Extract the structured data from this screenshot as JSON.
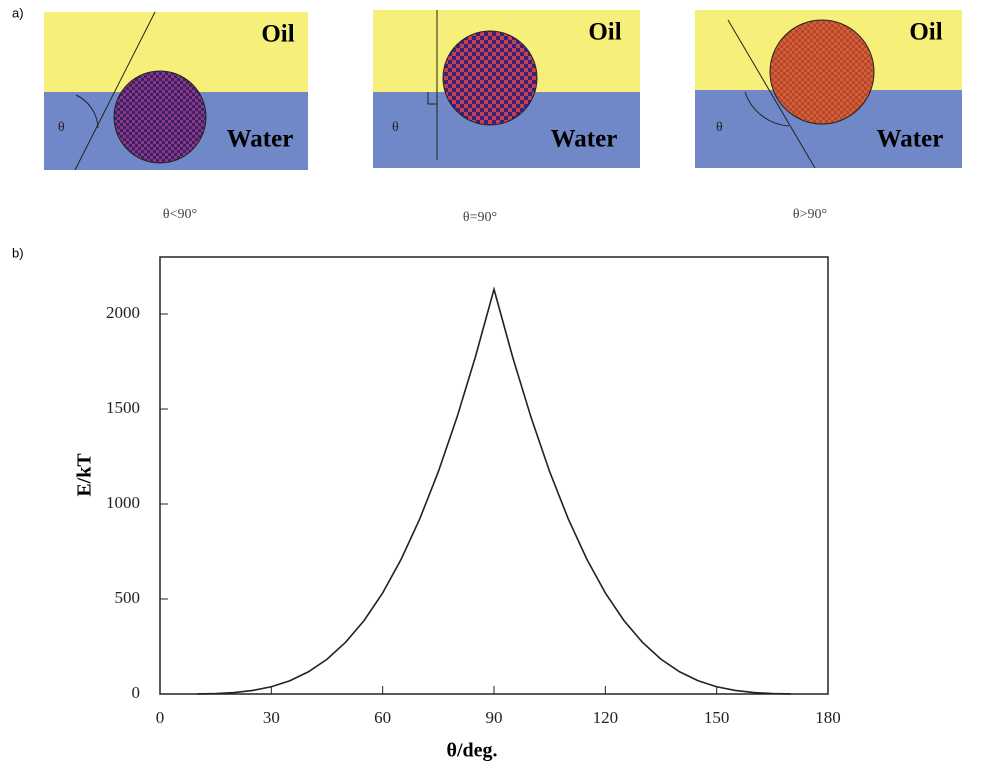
{
  "panel_a": {
    "label": "a)",
    "diagrams": [
      {
        "oil": "Oil",
        "water": "Water",
        "theta": "θ",
        "caption": "θ<90°"
      },
      {
        "oil": "Oil",
        "water": "Water",
        "theta": "θ",
        "caption": "θ=90°"
      },
      {
        "oil": "Oil",
        "water": "Water",
        "theta": "θ",
        "caption": "θ>90°"
      }
    ]
  },
  "chart_data": {
    "type": "line",
    "panel_label": "b)",
    "x_label": "θ/deg.",
    "y_label": "E/kT",
    "x": [
      10,
      15,
      20,
      25,
      30,
      35,
      40,
      45,
      50,
      55,
      60,
      65,
      70,
      75,
      80,
      85,
      90,
      95,
      100,
      105,
      110,
      115,
      120,
      125,
      130,
      135,
      140,
      145,
      150,
      155,
      160,
      165,
      170
    ],
    "values": [
      0.5,
      2.5,
      7.7,
      18.7,
      38,
      70,
      117,
      183,
      272,
      387,
      532,
      710,
      922,
      1170,
      1455,
      1775,
      2130,
      1775,
      1455,
      1170,
      922,
      710,
      532,
      387,
      272,
      183,
      117,
      70,
      38,
      18.7,
      7.7,
      2.5,
      0.5
    ],
    "color": "#222222",
    "xlim": [
      0,
      180
    ],
    "ylim": [
      0,
      2300
    ],
    "xticks": [
      0,
      30,
      60,
      90,
      120,
      150,
      180
    ],
    "yticks": [
      0,
      500,
      1000,
      1500,
      2000
    ]
  }
}
